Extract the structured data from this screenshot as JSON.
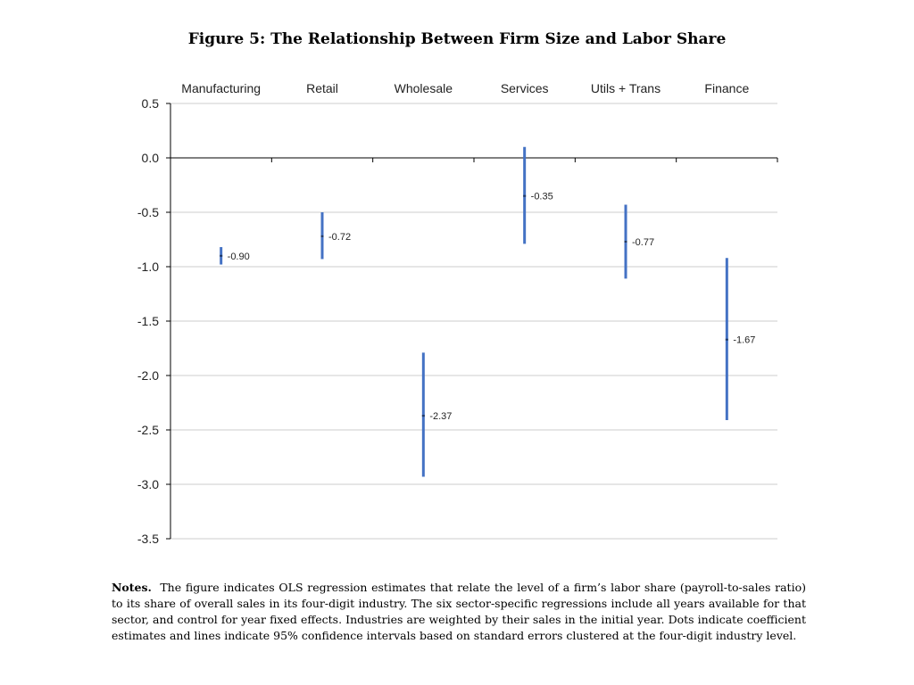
{
  "figure": {
    "title": "Figure 5: The Relationship Between Firm Size and Labor Share"
  },
  "notes": {
    "heading": "Notes.",
    "text": "The figure indicates OLS regression estimates that relate the level of a firm’s labor share (payroll-to-sales ratio) to its share of overall sales in its four-digit industry. The six sector-specific regressions include all years available for that sector, and control for year fixed effects. Industries are weighted by their sales in the initial year. Dots indicate coefficient estimates and lines indicate 95% confidence intervals based on standard errors clustered at the four-digit industry level."
  },
  "chart_data": {
    "type": "scatter",
    "title": "",
    "xlabel": "",
    "ylabel": "",
    "categories": [
      "Manufacturing",
      "Retail",
      "Wholesale",
      "Services",
      "Utils + Trans",
      "Finance"
    ],
    "estimates": [
      -0.9,
      -0.72,
      -2.37,
      -0.35,
      -0.77,
      -1.67
    ],
    "estimate_labels": [
      "-0.90",
      "-0.72",
      "-2.37",
      "-0.35",
      "-0.77",
      "-1.67"
    ],
    "ci_lower": [
      -0.98,
      -0.93,
      -2.93,
      -0.79,
      -1.11,
      -2.41
    ],
    "ci_upper": [
      -0.82,
      -0.5,
      -1.79,
      0.1,
      -0.43,
      -0.92
    ],
    "ylim": [
      -3.5,
      0.5
    ],
    "y_ticks": [
      0.5,
      0.0,
      -0.5,
      -1.0,
      -1.5,
      -2.0,
      -2.5,
      -3.0,
      -3.5
    ],
    "y_tick_labels": [
      "0.5",
      "0.0",
      "-0.5",
      "-1.0",
      "-1.5",
      "-2.0",
      "-2.5",
      "-3.0",
      "-3.5"
    ],
    "grid": true,
    "category_labels_position": "top",
    "colors": {
      "interval": "#4472C4",
      "point": "#1F3864",
      "grid": "#cccccc",
      "axis": "#000000"
    }
  }
}
